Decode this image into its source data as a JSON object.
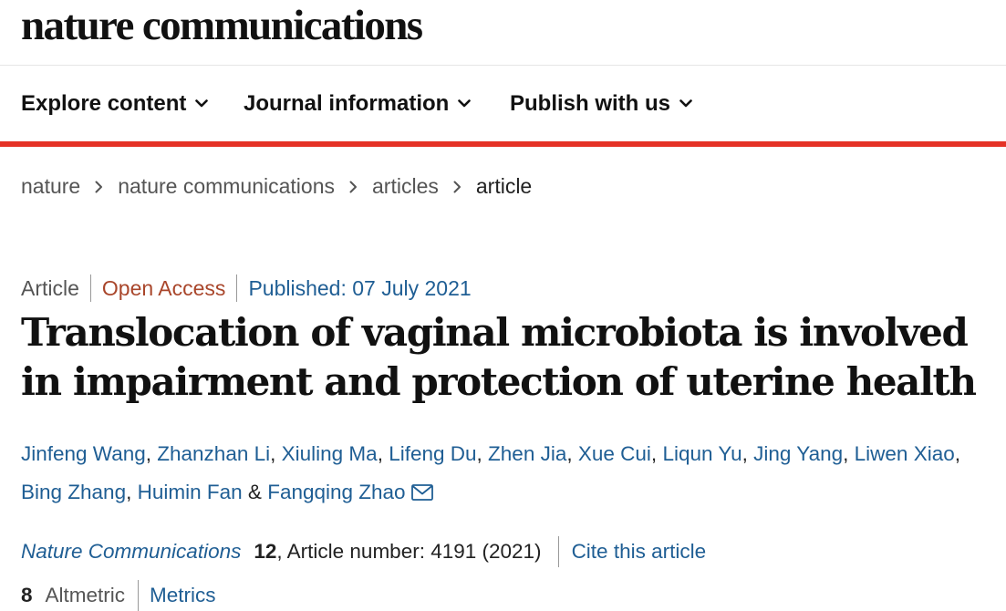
{
  "site": {
    "logo": "nature communications"
  },
  "nav": {
    "items": [
      {
        "label": "Explore content"
      },
      {
        "label": "Journal information"
      },
      {
        "label": "Publish with us"
      }
    ]
  },
  "breadcrumb": {
    "items": [
      "nature",
      "nature communications",
      "articles",
      "article"
    ]
  },
  "article": {
    "type": "Article",
    "access": "Open Access",
    "published": "Published: 07 July 2021",
    "title": "Translocation of vaginal microbiota is involved in impairment and protection of uterine health",
    "authors": [
      "Jinfeng Wang",
      "Zhanzhan Li",
      "Xiuling Ma",
      "Lifeng Du",
      "Zhen Jia",
      "Xue Cui",
      "Liqun Yu",
      "Jing Yang",
      "Liwen Xiao",
      "Bing Zhang",
      "Huimin Fan",
      "Fangqing Zhao"
    ],
    "author_joiner": "&",
    "journal": "Nature Communications",
    "volume": "12",
    "article_number": ", Article number: 4191 (2021)",
    "cite_label": "Cite this article",
    "altmetric_count": "8",
    "altmetric_label": "Altmetric",
    "metrics_label": "Metrics"
  },
  "colors": {
    "accent_red": "#e53226",
    "link_blue": "#1f5e94",
    "open_access": "#a9462b"
  },
  "icons": {
    "nav_chevron": "chevron-down-icon",
    "breadcrumb_separator": "chevron-right-icon",
    "corresponding_author": "envelope-icon"
  }
}
